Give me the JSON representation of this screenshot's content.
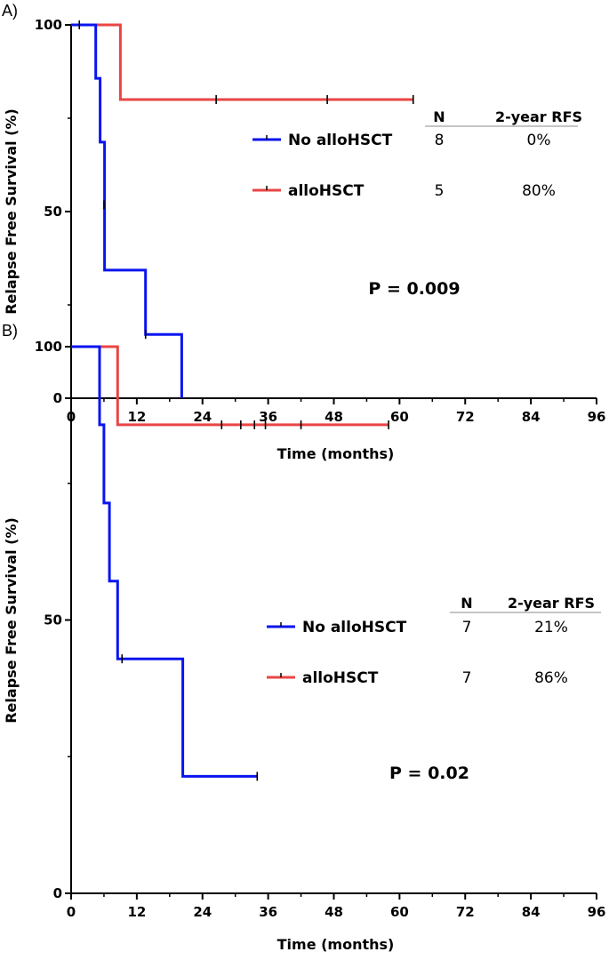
{
  "colors": {
    "no_allo": "#0a14f0",
    "allo": "#e94545",
    "axis": "#000000"
  },
  "chart_data": [
    {
      "type": "line",
      "panel": "A)",
      "xlabel": "Time (months)",
      "ylabel": "Relapse Free Survival (%)",
      "xlim": [
        0,
        96
      ],
      "ylim": [
        0,
        100
      ],
      "xticks": [
        "0",
        "12",
        "24",
        "36",
        "48",
        "60",
        "72",
        "84",
        "96"
      ],
      "yticks": [
        "0",
        "50",
        "100"
      ],
      "pvalue": "P = 0.009",
      "table_header": {
        "n": "N",
        "rfs": "2-year RFS"
      },
      "series": [
        {
          "name": "No alloHSCT",
          "key": "no_allo",
          "n": "8",
          "rfs": "0%",
          "steps": [
            [
              0,
              100
            ],
            [
              4.5,
              100
            ],
            [
              4.5,
              85.7
            ],
            [
              5.3,
              85.7
            ],
            [
              5.3,
              68.6
            ],
            [
              6.1,
              68.6
            ],
            [
              6.1,
              34.3
            ],
            [
              13.6,
              34.3
            ],
            [
              13.6,
              17.1
            ],
            [
              20.2,
              17.1
            ],
            [
              20.2,
              0
            ]
          ],
          "censor": [
            [
              1.5,
              100
            ],
            [
              6,
              51.8
            ],
            [
              13.6,
              17.1
            ]
          ]
        },
        {
          "name": "alloHSCT",
          "key": "allo",
          "n": "5",
          "rfs": "80%",
          "steps": [
            [
              0,
              100
            ],
            [
              9,
              100
            ],
            [
              9,
              80
            ],
            [
              62.5,
              80
            ]
          ],
          "censor": [
            [
              26.5,
              80
            ],
            [
              46.8,
              80
            ],
            [
              62.5,
              80
            ]
          ]
        }
      ]
    },
    {
      "type": "line",
      "panel": "B)",
      "xlabel": "Time (months)",
      "ylabel": "Relapse Free Survival (%)",
      "xlim": [
        0,
        96
      ],
      "ylim": [
        0,
        100
      ],
      "xticks": [
        "0",
        "12",
        "24",
        "36",
        "48",
        "60",
        "72",
        "84",
        "96"
      ],
      "yticks": [
        "0",
        "50",
        "100"
      ],
      "pvalue": "P = 0.02",
      "table_header": {
        "n": "N",
        "rfs": "2-year RFS"
      },
      "series": [
        {
          "name": "No alloHSCT",
          "key": "no_allo",
          "n": "7",
          "rfs": "21%",
          "steps": [
            [
              0,
              100
            ],
            [
              5.2,
              100
            ],
            [
              5.2,
              85.7
            ],
            [
              6,
              85.7
            ],
            [
              6,
              71.4
            ],
            [
              7,
              71.4
            ],
            [
              7,
              57.1
            ],
            [
              8.5,
              57.1
            ],
            [
              8.5,
              42.9
            ],
            [
              20.4,
              42.9
            ],
            [
              20.4,
              21.4
            ],
            [
              34,
              21.4
            ]
          ],
          "censor": [
            [
              9.3,
              42.9
            ],
            [
              34,
              21.4
            ]
          ]
        },
        {
          "name": "alloHSCT",
          "key": "allo",
          "n": "7",
          "rfs": "86%",
          "steps": [
            [
              0,
              100
            ],
            [
              8.5,
              100
            ],
            [
              8.5,
              85.7
            ],
            [
              58,
              85.7
            ]
          ],
          "censor": [
            [
              27.5,
              85.7
            ],
            [
              31,
              85.7
            ],
            [
              33.5,
              85.7
            ],
            [
              35.5,
              85.7
            ],
            [
              42,
              85.7
            ],
            [
              58,
              85.7
            ]
          ]
        }
      ]
    }
  ]
}
